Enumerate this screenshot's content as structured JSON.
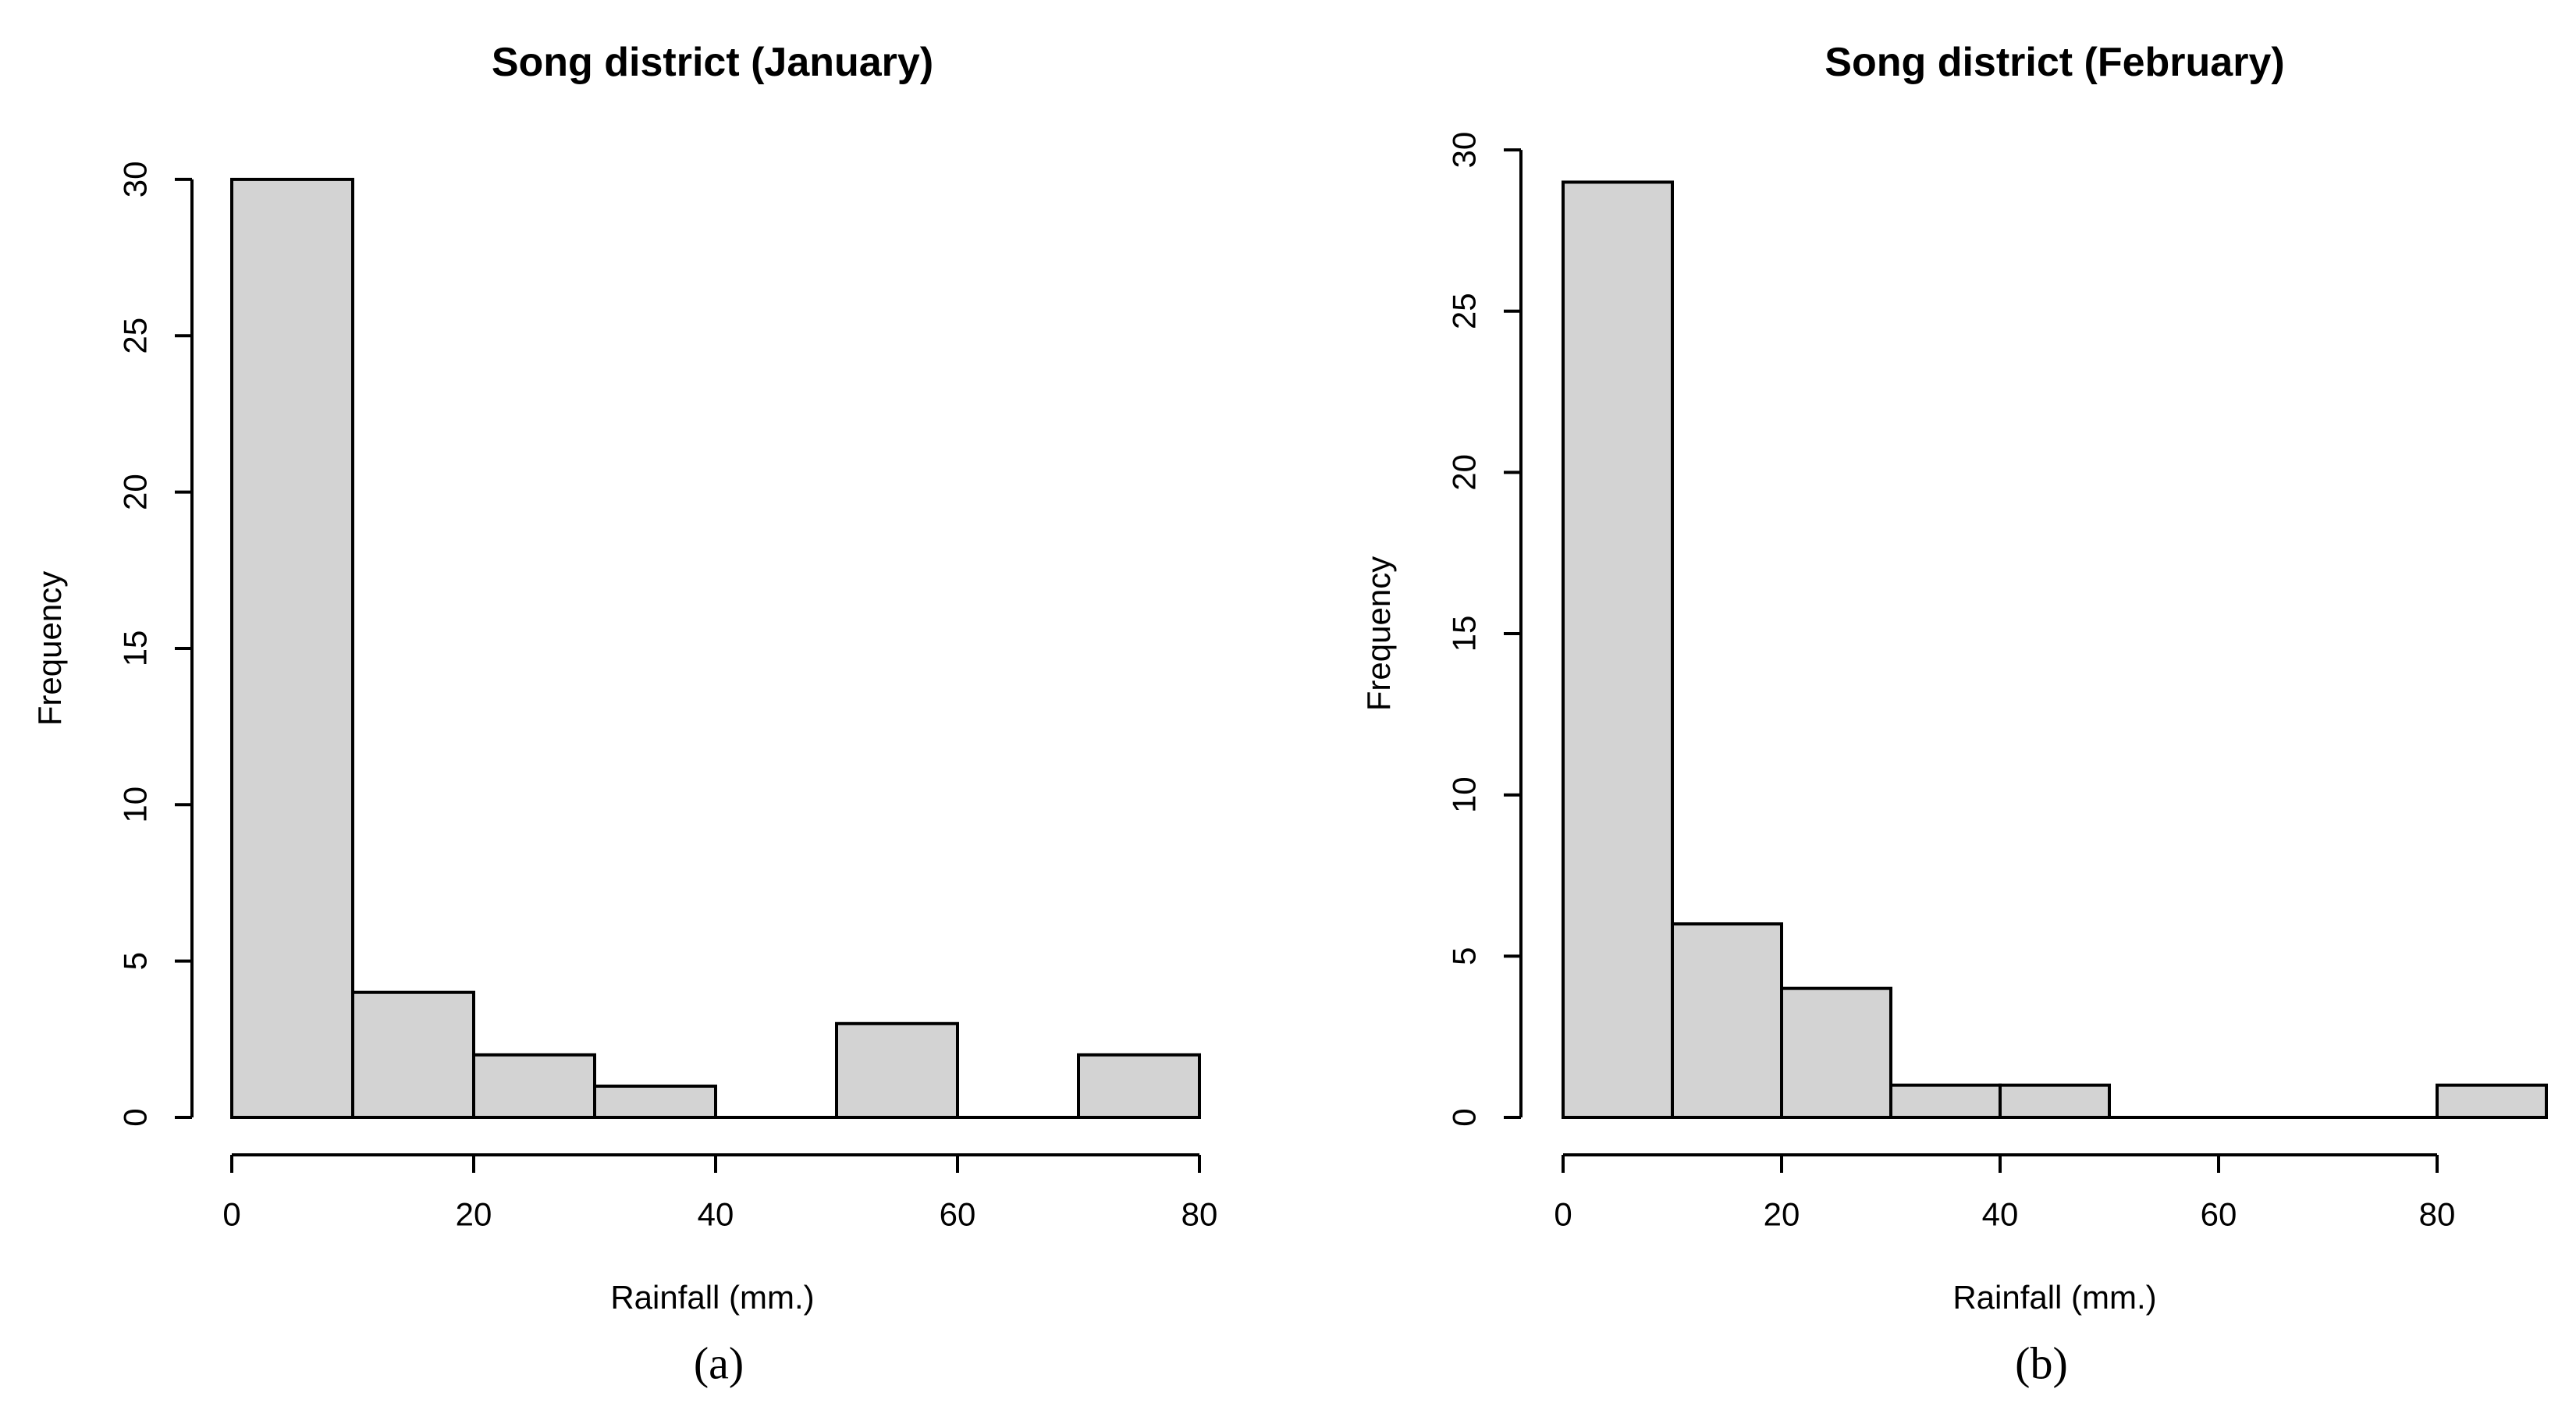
{
  "chart_data": [
    {
      "type": "bar",
      "subtype": "histogram",
      "title": "Song district (January)",
      "xlabel": "Rainfall (mm.)",
      "ylabel": "Frequency",
      "caption": "(a)",
      "bin_width": 10,
      "bin_edges": [
        0,
        10,
        20,
        30,
        40,
        50,
        60,
        70,
        80
      ],
      "categories": [
        "0-10",
        "10-20",
        "20-30",
        "30-40",
        "40-50",
        "50-60",
        "60-70",
        "70-80"
      ],
      "values": [
        30,
        4,
        2,
        1,
        0,
        3,
        0,
        2
      ],
      "x_ticks": [
        0,
        20,
        40,
        60,
        80
      ],
      "y_ticks": [
        0,
        5,
        10,
        15,
        20,
        25,
        30
      ],
      "xlim": [
        0,
        80
      ],
      "ylim": [
        0,
        30
      ],
      "grid": false,
      "legend_position": "none",
      "bar_fill": "#d3d3d3",
      "bar_border": "#000000",
      "text_color": "#000000"
    },
    {
      "type": "bar",
      "subtype": "histogram",
      "title": "Song district (February)",
      "xlabel": "Rainfall (mm.)",
      "ylabel": "Frequency",
      "caption": "(b)",
      "bin_width": 10,
      "bin_edges": [
        0,
        10,
        20,
        30,
        40,
        50,
        60,
        70,
        80,
        90
      ],
      "categories": [
        "0-10",
        "10-20",
        "20-30",
        "30-40",
        "40-50",
        "50-60",
        "60-70",
        "70-80",
        "80-90"
      ],
      "values": [
        29,
        6,
        4,
        1,
        1,
        0,
        0,
        0,
        1
      ],
      "x_ticks": [
        0,
        20,
        40,
        60,
        80
      ],
      "y_ticks": [
        0,
        5,
        10,
        15,
        20,
        25,
        30
      ],
      "xlim": [
        0,
        90
      ],
      "ylim": [
        0,
        30
      ],
      "grid": false,
      "legend_position": "none",
      "bar_fill": "#d3d3d3",
      "bar_border": "#000000",
      "text_color": "#000000"
    }
  ]
}
